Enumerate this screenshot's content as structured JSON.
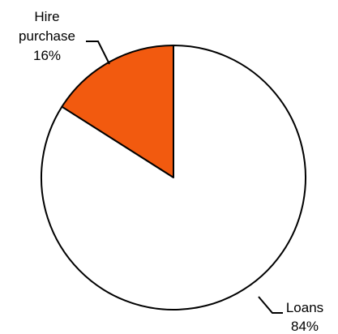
{
  "chart_data": {
    "type": "pie",
    "title": "",
    "start_angle_deg": 0,
    "direction": "counterclockwise",
    "slices": [
      {
        "label": "Hire purchase",
        "label_lines": [
          "Hire",
          "purchase"
        ],
        "value": 16,
        "value_label": "16%",
        "color": "#f25a0f"
      },
      {
        "label": "Loans",
        "label_lines": [
          "Loans"
        ],
        "value": 84,
        "value_label": "84%",
        "color": "#ffffff"
      }
    ],
    "outline_color": "#000000",
    "legend": "none"
  }
}
